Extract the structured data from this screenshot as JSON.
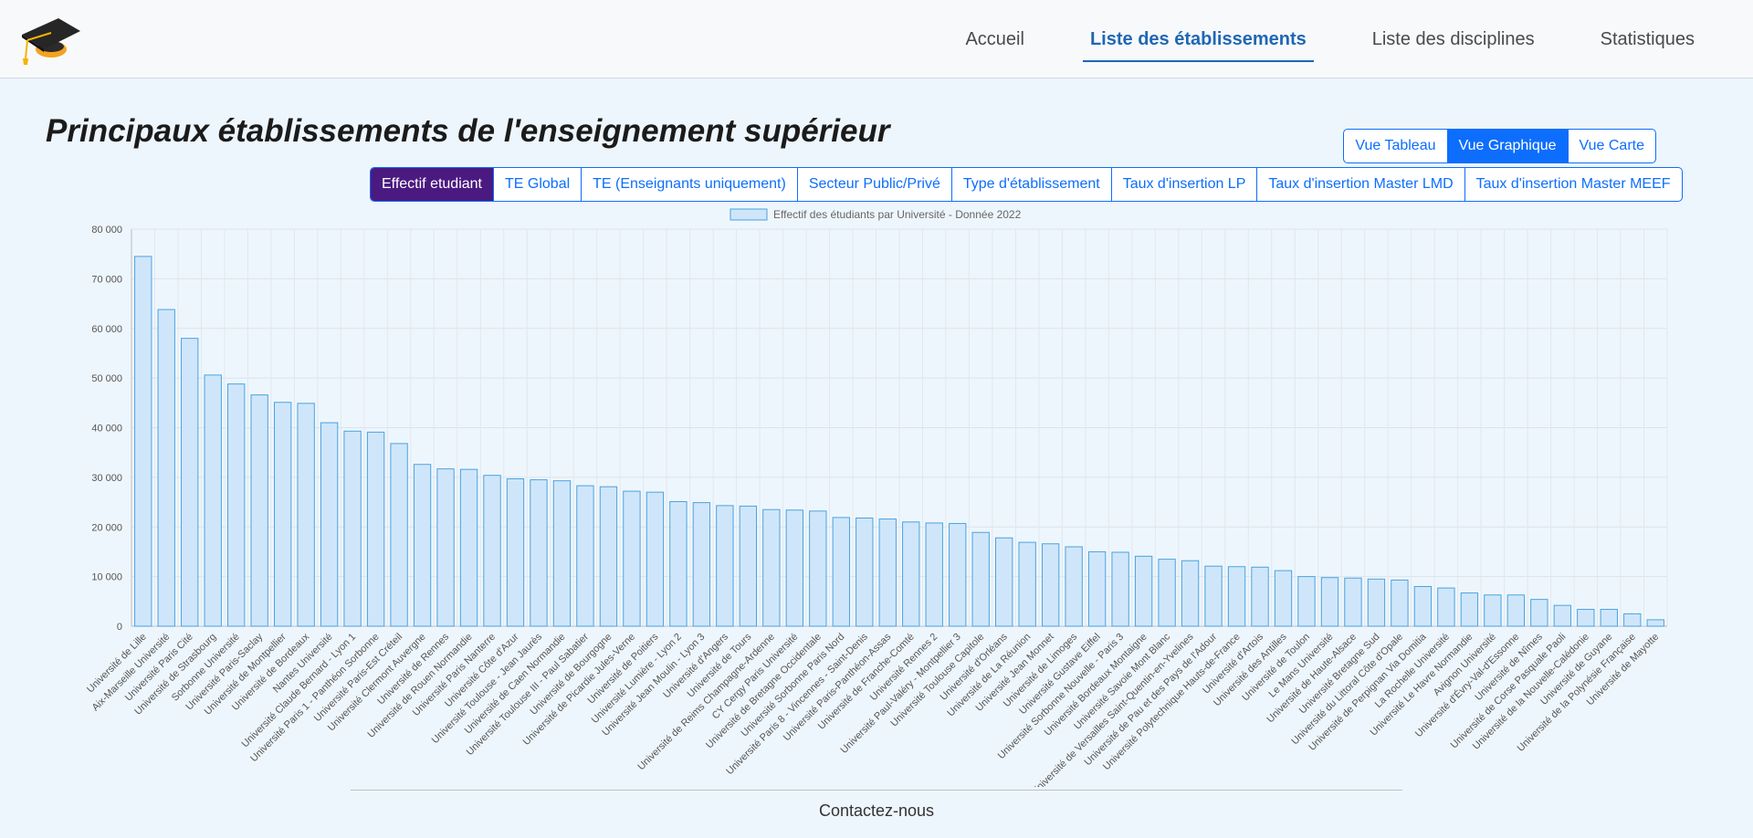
{
  "nav": {
    "items": [
      {
        "label": "Accueil",
        "active": false
      },
      {
        "label": "Liste des établissements",
        "active": true
      },
      {
        "label": "Liste des disciplines",
        "active": false
      },
      {
        "label": "Statistiques",
        "active": false
      }
    ]
  },
  "logo_icon": "graduation-cap-icon",
  "page_title": "Principaux établissements de l'enseignement supérieur",
  "view_buttons": [
    {
      "label": "Vue Tableau",
      "active": false
    },
    {
      "label": "Vue Graphique",
      "active": true
    },
    {
      "label": "Vue Carte",
      "active": false
    }
  ],
  "metric_buttons": [
    {
      "label": "Effectif etudiant",
      "active": true
    },
    {
      "label": "TE Global",
      "active": false
    },
    {
      "label": "TE (Enseignants uniquement)",
      "active": false
    },
    {
      "label": "Secteur Public/Privé",
      "active": false
    },
    {
      "label": "Type d'établissement",
      "active": false
    },
    {
      "label": "Taux d'insertion LP",
      "active": false
    },
    {
      "label": "Taux d'insertion Master LMD",
      "active": false
    },
    {
      "label": "Taux d'insertion Master MEEF",
      "active": false
    }
  ],
  "colors": {
    "bar_fill": "#cfe6fa",
    "bar_stroke": "#4aa3df",
    "active_metric": "#4b1a80",
    "active_view": "#0d6efd",
    "nav_active": "#1f67b4"
  },
  "chart_data": {
    "type": "bar",
    "legend": "Effectif des étudiants par Université - Donnée 2022",
    "legend_position": "top-center",
    "grid": true,
    "ylim": [
      0,
      80000
    ],
    "yticks": [
      "0",
      "10 000",
      "20 000",
      "30 000",
      "40 000",
      "50 000",
      "60 000",
      "70 000",
      "80 000"
    ],
    "categories": [
      "Université de Lille",
      "Aix-Marseille Université",
      "Université Paris Cité",
      "Université de Strasbourg",
      "Sorbonne Université",
      "Université Paris-Saclay",
      "Université de Montpellier",
      "Université de Bordeaux",
      "Nantes Université",
      "Université Claude Bernard - Lyon 1",
      "Université Paris 1 - Panthéon Sorbonne",
      "Université Paris-Est Créteil",
      "Université Clermont Auvergne",
      "Université de Rennes",
      "Université de Rouen Normandie",
      "Université Paris Nanterre",
      "Université Côte d'Azur",
      "Université Toulouse - Jean Jaurès",
      "Université de Caen Normandie",
      "Université Toulouse III - Paul Sabatier",
      "Université de Bourgogne",
      "Université de Picardie Jules-Verne",
      "Université de Poitiers",
      "Université Lumière - Lyon 2",
      "Université Jean Moulin - Lyon 3",
      "Université d'Angers",
      "Université de Tours",
      "Université de Reims Champagne-Ardenne",
      "CY Cergy Paris Université",
      "Université de Bretagne Occidentale",
      "Université Sorbonne Paris Nord",
      "Université Paris 8 - Vincennes - Saint-Denis",
      "Université Paris-Panthéon-Assas",
      "Université de Franche-Comté",
      "Université Rennes 2",
      "Université Paul-Valéry - Montpellier 3",
      "Université Toulouse Capitole",
      "Université d'Orléans",
      "Université de La Réunion",
      "Université Jean Monnet",
      "Université de Limoges",
      "Université Gustave Eiffel",
      "Université Sorbonne Nouvelle - Paris 3",
      "Université Bordeaux Montaigne",
      "Université Savoie Mont Blanc",
      "Université de Versailles Saint-Quentin-en-Yvelines",
      "Université de Pau et des Pays de l'Adour",
      "Université Polytechnique Hauts-de-France",
      "Université d'Artois",
      "Université des Antilles",
      "Université de Toulon",
      "Le Mans Université",
      "Université de Haute-Alsace",
      "Université Bretagne Sud",
      "Université du Littoral Côte d'Opale",
      "Université de Perpignan Via Domitia",
      "La Rochelle Université",
      "Université Le Havre Normandie",
      "Avignon Université",
      "Université d'Évry-Val-d'Essonne",
      "Université de Nîmes",
      "Université de Corse Pasquale Paoli",
      "Université de la Nouvelle-Calédonie",
      "Université de Guyane",
      "Université de la Polynésie Française",
      "Université de Mayotte"
    ],
    "values": [
      74500,
      63800,
      58000,
      50600,
      48800,
      46600,
      45100,
      44900,
      41000,
      39300,
      39100,
      36800,
      32600,
      31700,
      31600,
      30400,
      29700,
      29500,
      29300,
      28300,
      28100,
      27200,
      27000,
      25100,
      24900,
      24300,
      24200,
      23500,
      23400,
      23200,
      21900,
      21800,
      21600,
      21000,
      20800,
      20700,
      18900,
      17800,
      16900,
      16600,
      16000,
      15000,
      14900,
      14100,
      13500,
      13200,
      12100,
      12000,
      11900,
      11200,
      10000,
      9800,
      9700,
      9500,
      9300,
      8000,
      7700,
      6700,
      6300,
      6300,
      5400,
      4200,
      3400,
      3400,
      2500,
      1300
    ]
  },
  "footer": {
    "contact": "Contactez-nous"
  }
}
